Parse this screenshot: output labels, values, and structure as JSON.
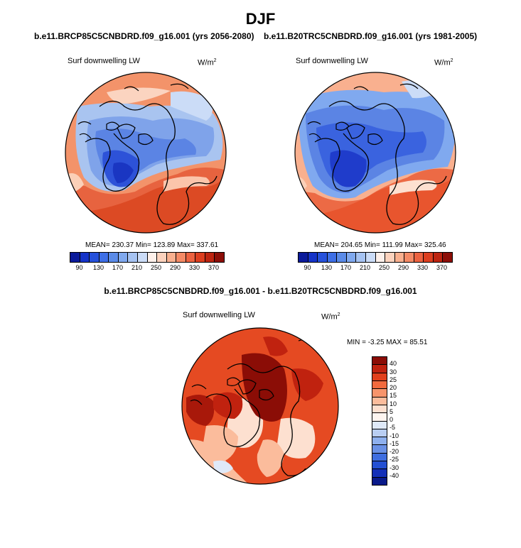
{
  "title": "DJF",
  "panel1": {
    "case_label": "b.e11.BRCP85C5CNBDRD.f09_g16.001 (yrs 2056-2080)",
    "var_label": "Surf downwelling LW",
    "units": "W/m",
    "units_sup": "2",
    "stats": "MEAN= 230.37  Min= 123.89  Max= 337.61"
  },
  "panel2": {
    "case_label": "b.e11.B20TRC5CNBDRD.f09_g16.001 (yrs 1981-2005)",
    "var_label": "Surf downwelling LW",
    "units": "W/m",
    "units_sup": "2",
    "stats": "MEAN= 204.65  Min= 111.99  Max= 325.46"
  },
  "panel3": {
    "case_label": "b.e11.BRCP85C5CNBDRD.f09_g16.001 - b.e11.B20TRC5CNBDRD.f09_g16.001",
    "var_label": "Surf downwelling LW",
    "units": "W/m",
    "units_sup": "2",
    "stats": "MIN =  -3.25 MAX =  85.51"
  },
  "colorbar_abs": {
    "tick_labels": [
      "90",
      "130",
      "170",
      "210",
      "250",
      "290",
      "330",
      "370"
    ],
    "colors": [
      "#0a1a9a",
      "#1533c8",
      "#2651db",
      "#3e6fe6",
      "#5b8be8",
      "#80a9ef",
      "#a6c3f2",
      "#cbdcf7",
      "#fdf0ea",
      "#fcd2bd",
      "#f9b08f",
      "#f48a66",
      "#ec6240",
      "#dc3e1f",
      "#bd2410",
      "#8c0e07"
    ]
  },
  "colorbar_diff": {
    "labels": [
      "40",
      "30",
      "25",
      "20",
      "15",
      "10",
      "5",
      "0",
      "-5",
      "-10",
      "-15",
      "-20",
      "-25",
      "-30",
      "-40"
    ],
    "colors": [
      "#8b0d06",
      "#c0220f",
      "#e2401c",
      "#f26a3e",
      "#f7946b",
      "#fbbc9c",
      "#fde0d0",
      "#fef5f0",
      "#dfe9f8",
      "#b9cef2",
      "#8eb0ee",
      "#6a91e6",
      "#3f6ee0",
      "#2450d3",
      "#1430b8",
      "#0a1a8a"
    ]
  },
  "chart_data": {
    "type": "map",
    "projection": "north polar stereographic",
    "season": "DJF",
    "variable": "Surf downwelling LW",
    "units": "W/m2",
    "panels": [
      {
        "case": "b.e11.BRCP85C5CNBDRD.f09_g16.001",
        "years": "2056-2080",
        "mean": 230.37,
        "min": 123.89,
        "max": 337.61,
        "contour_levels": [
          90,
          130,
          170,
          210,
          250,
          290,
          330,
          370
        ]
      },
      {
        "case": "b.e11.B20TRC5CNBDRD.f09_g16.001",
        "years": "1981-2005",
        "mean": 204.65,
        "min": 111.99,
        "max": 325.46,
        "contour_levels": [
          90,
          130,
          170,
          210,
          250,
          290,
          330,
          370
        ]
      },
      {
        "case": "difference",
        "min": -3.25,
        "max": 85.51,
        "contour_levels": [
          -40,
          -30,
          -25,
          -20,
          -15,
          -10,
          -5,
          0,
          5,
          10,
          15,
          20,
          25,
          30,
          40
        ]
      }
    ]
  }
}
